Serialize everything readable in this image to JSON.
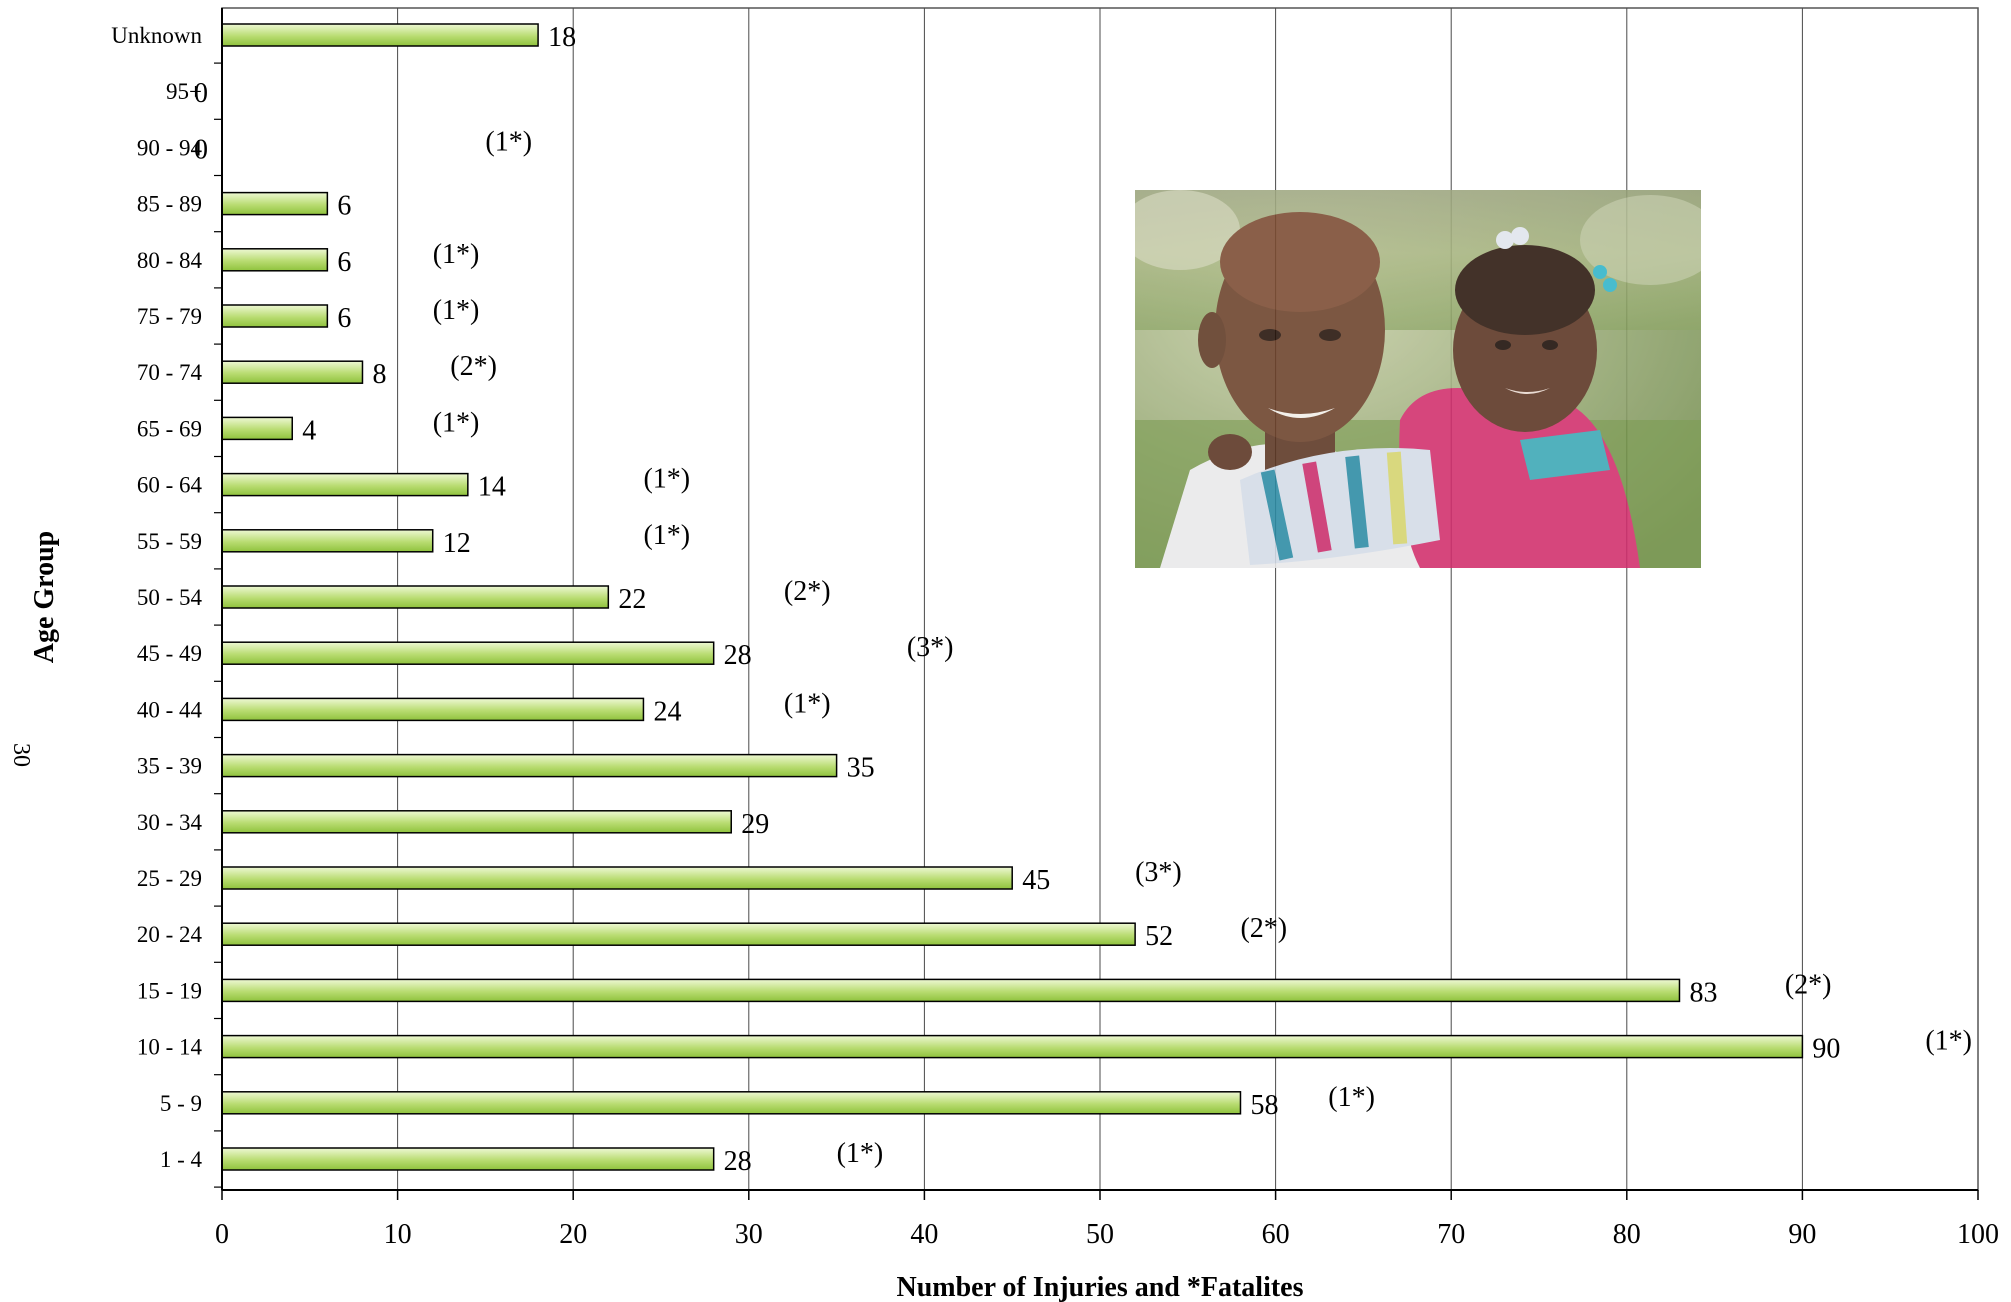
{
  "chart_data": {
    "type": "bar",
    "orientation": "horizontal",
    "title": "",
    "xlabel": "Number of Injuries and *Fatalites",
    "ylabel": "Age Group",
    "xlim": [
      0,
      100
    ],
    "x_ticks": [
      "0",
      "10",
      "20",
      "30",
      "40",
      "50",
      "60",
      "70",
      "80",
      "90",
      "100"
    ],
    "grid": "vertical",
    "legend": "none",
    "categories": [
      "Unknown",
      "95+",
      "90 - 94",
      "85 - 89",
      "80 - 84",
      "75 - 79",
      "70 - 74",
      "65 - 69",
      "60 - 64",
      "55 - 59",
      "50 - 54",
      "45 - 49",
      "40 - 44",
      "35 - 39",
      "30 - 34",
      "25 - 29",
      "20 - 24",
      "15 - 19",
      "10 - 14",
      "5  -  9",
      "1  -  4"
    ],
    "values": [
      18,
      0,
      0,
      6,
      6,
      6,
      8,
      4,
      14,
      12,
      22,
      28,
      24,
      35,
      29,
      45,
      52,
      83,
      90,
      58,
      28
    ],
    "fatalities": [
      "",
      "",
      "(1*)",
      "",
      "(1*)",
      "(1*)",
      "(2*)",
      "(1*)",
      "(1*)",
      "(1*)",
      "(2*)",
      "(3*)",
      "(1*)",
      "",
      "",
      "(3*)",
      "(2*)",
      "(2*)",
      "(1*)",
      "(1*)",
      "(1*)"
    ],
    "fatalities_x": [
      null,
      null,
      15,
      null,
      12,
      12,
      13,
      12,
      24,
      24,
      32,
      39,
      32,
      null,
      null,
      52,
      58,
      89,
      97,
      63,
      35
    ],
    "colors": {
      "bar_fill": "#a9d35e",
      "bar_fill_light": "#e6f5c4",
      "bar_stroke": "#000000",
      "grid": "#4a4a4a"
    }
  },
  "page_number": "30",
  "photo": {
    "icon": "photo-man-holding-child"
  }
}
